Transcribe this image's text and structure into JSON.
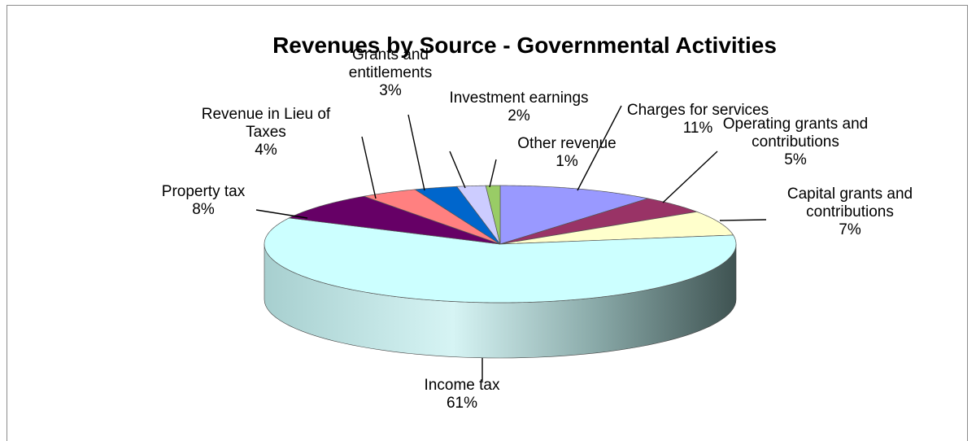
{
  "chart_data": {
    "type": "pie",
    "title": "Revenues by Source - Governmental Activities",
    "slices": [
      {
        "label": "Charges for services",
        "label_lines": [
          "Charges for services"
        ],
        "value": 11,
        "value_label": "11%",
        "color": "#9999ff"
      },
      {
        "label": "Operating grants and contributions",
        "label_lines": [
          "Operating grants and",
          "contributions"
        ],
        "value": 5,
        "value_label": "5%",
        "color": "#993366"
      },
      {
        "label": "Capital grants and contributions",
        "label_lines": [
          "Capital grants and",
          "contributions"
        ],
        "value": 7,
        "value_label": "7%",
        "color": "#ffffcc"
      },
      {
        "label": "Income tax",
        "label_lines": [
          "Income tax"
        ],
        "value": 61,
        "value_label": "61%",
        "color": "#ccffff"
      },
      {
        "label": "Property tax",
        "label_lines": [
          "Property tax"
        ],
        "value": 8,
        "value_label": "8%",
        "color": "#660066"
      },
      {
        "label": "Revenue in Lieu of Taxes",
        "label_lines": [
          "Revenue in Lieu of",
          "Taxes"
        ],
        "value": 4,
        "value_label": "4%",
        "color": "#ff8080"
      },
      {
        "label": "Grants and entitlements",
        "label_lines": [
          "Grants and",
          "entitlements"
        ],
        "value": 3,
        "value_label": "3%",
        "color": "#0066cc"
      },
      {
        "label": "Investment earnings",
        "label_lines": [
          "Investment earnings"
        ],
        "value": 2,
        "value_label": "2%",
        "color": "#ccccff"
      },
      {
        "label": "Other revenue",
        "label_lines": [
          "Other revenue"
        ],
        "value": 1,
        "value_label": "1%",
        "color": "#99cc66"
      }
    ],
    "legend": "none"
  }
}
